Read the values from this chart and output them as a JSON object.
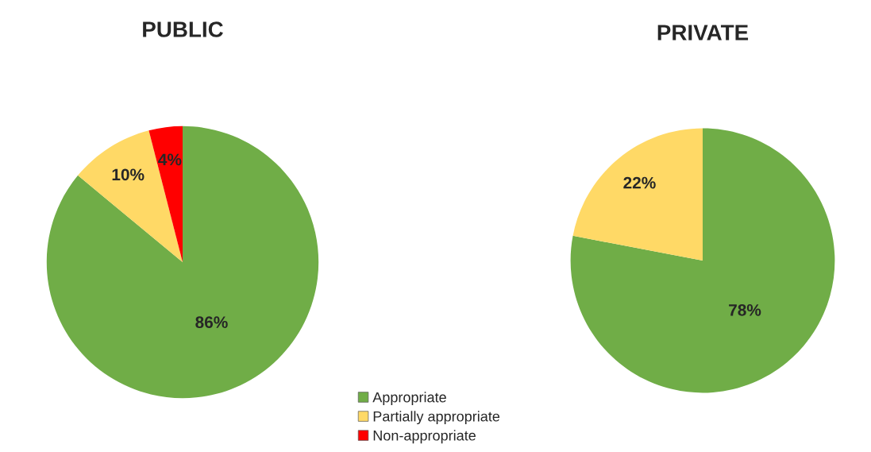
{
  "chart_data": [
    {
      "type": "pie",
      "title": "PUBLIC",
      "categories": [
        "Appropriate",
        "Partially appropriate",
        "Non-appropriate"
      ],
      "values": [
        86,
        10,
        4
      ],
      "colors": [
        "#70ad47",
        "#ffd966",
        "#ff0000"
      ],
      "value_labels": [
        "86%",
        "10%",
        "4%"
      ],
      "legend": "bottom right"
    },
    {
      "type": "pie",
      "title": "PRIVATE",
      "categories": [
        null,
        null
      ],
      "values": [
        78,
        22
      ],
      "colors": [
        "#70ad47",
        "#ffd966"
      ],
      "value_labels": [
        "78%",
        "22%"
      ]
    }
  ]
}
